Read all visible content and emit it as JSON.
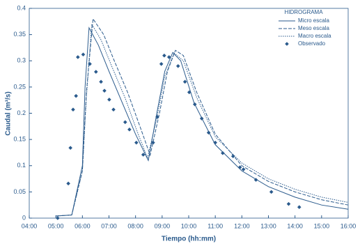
{
  "chart_data": {
    "type": "line",
    "legend_title": "HIDROGRAMA",
    "xlabel": "Tiempo (hh:mm)",
    "ylabel": "Caudal (m³/s)",
    "xlim": [
      4,
      16
    ],
    "xticks": [
      {
        "value": 4,
        "label": "04:00"
      },
      {
        "value": 5,
        "label": "05:00"
      },
      {
        "value": 6,
        "label": "06:00"
      },
      {
        "value": 7,
        "label": "07:00"
      },
      {
        "value": 8,
        "label": "08:00"
      },
      {
        "value": 9,
        "label": "09:00"
      },
      {
        "value": 10,
        "label": "10:00"
      },
      {
        "value": 11,
        "label": "11:00"
      },
      {
        "value": 12,
        "label": "12:00"
      },
      {
        "value": 13,
        "label": "13:00"
      },
      {
        "value": 14,
        "label": "14:00"
      },
      {
        "value": 15,
        "label": "15:00"
      },
      {
        "value": 16,
        "label": "16:00"
      }
    ],
    "ylim": [
      0,
      0.4
    ],
    "yticks": [
      0,
      0.05,
      0.1,
      0.15,
      0.2,
      0.25,
      0.3,
      0.35,
      0.4
    ],
    "legend": "upper right",
    "series": [
      {
        "name": "Micro escala",
        "color": "#2a5a8c",
        "dash": "solid",
        "x": [
          5,
          5.6,
          6.0,
          6.1,
          6.25,
          6.6,
          7,
          7.5,
          8,
          8.48,
          8.8,
          9.1,
          9.4,
          9.7,
          10.2,
          11,
          12,
          13,
          14,
          15,
          16
        ],
        "values": [
          0.004,
          0.006,
          0.1,
          0.25,
          0.363,
          0.33,
          0.28,
          0.22,
          0.16,
          0.11,
          0.2,
          0.28,
          0.316,
          0.3,
          0.22,
          0.14,
          0.09,
          0.06,
          0.04,
          0.025,
          0.017
        ]
      },
      {
        "name": "Meso escala",
        "color": "#2a5a8c",
        "dash": "dashed",
        "x": [
          5,
          5.6,
          6.0,
          6.15,
          6.4,
          6.8,
          7.2,
          7.7,
          8.2,
          8.55,
          8.9,
          9.2,
          9.5,
          9.8,
          10.3,
          11,
          12,
          13,
          14,
          15,
          16
        ],
        "values": [
          0.004,
          0.006,
          0.09,
          0.24,
          0.38,
          0.35,
          0.3,
          0.24,
          0.17,
          0.12,
          0.2,
          0.28,
          0.32,
          0.31,
          0.24,
          0.16,
          0.1,
          0.07,
          0.05,
          0.035,
          0.025
        ]
      },
      {
        "name": "Macro escala",
        "color": "#2a5a8c",
        "dash": "dotted",
        "x": [
          5,
          5.6,
          6.0,
          6.15,
          6.35,
          6.7,
          7.1,
          7.6,
          8.1,
          8.45,
          8.8,
          9.1,
          9.45,
          9.8,
          10.3,
          11,
          12,
          13,
          14,
          15,
          16
        ],
        "values": [
          0.004,
          0.006,
          0.09,
          0.23,
          0.37,
          0.34,
          0.29,
          0.23,
          0.16,
          0.115,
          0.19,
          0.27,
          0.315,
          0.3,
          0.23,
          0.155,
          0.105,
          0.075,
          0.055,
          0.04,
          0.03
        ]
      },
      {
        "name": "Observado",
        "color": "#2a5a8c",
        "marker": "diamond",
        "x": [
          5.07,
          5.47,
          5.55,
          5.65,
          5.76,
          5.83,
          6.03,
          6.28,
          6.51,
          6.7,
          6.83,
          7.01,
          7.17,
          7.61,
          7.77,
          8.03,
          8.29,
          8.66,
          8.82,
          8.97,
          9.08,
          9.26,
          9.6,
          9.86,
          10.02,
          10.23,
          10.49,
          10.75,
          11.0,
          11.28,
          11.67,
          11.93,
          12.06,
          12.53,
          13.11,
          13.76,
          14.16
        ],
        "values": [
          0,
          0.066,
          0.134,
          0.207,
          0.233,
          0.307,
          0.312,
          0.294,
          0.279,
          0.26,
          0.243,
          0.226,
          0.207,
          0.183,
          0.169,
          0.144,
          0.121,
          0.144,
          0.193,
          0.294,
          0.31,
          0.307,
          0.29,
          0.26,
          0.24,
          0.217,
          0.19,
          0.163,
          0.144,
          0.124,
          0.118,
          0.097,
          0.093,
          0.073,
          0.05,
          0.027,
          0.021
        ]
      }
    ]
  }
}
